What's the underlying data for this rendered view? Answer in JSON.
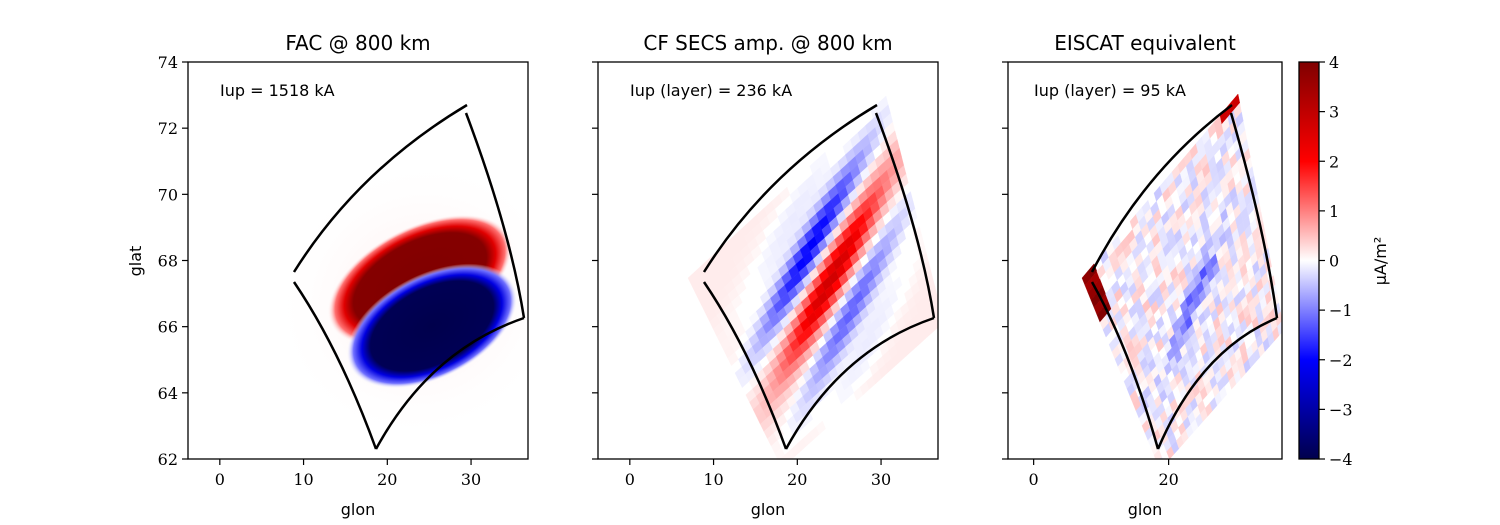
{
  "chart_data": [
    {
      "type": "heatmap",
      "title": "FAC @ 800 km",
      "annotation": "Iup = 1518 kA",
      "xlabel": "glon",
      "ylabel": "glat",
      "xlim": [
        -3.8,
        36.8
      ],
      "ylim": [
        62,
        74
      ],
      "xticks": [
        "0",
        "10",
        "20",
        "30"
      ],
      "yticks": [
        "62",
        "64",
        "66",
        "68",
        "70",
        "72",
        "74"
      ],
      "pattern": "smooth bipolar ellipses: positive lobe north-west, negative lobe south-east",
      "centers": {
        "positive": [
          25.5,
          67.8
        ],
        "negative": [
          27.0,
          66.4
        ]
      }
    },
    {
      "type": "heatmap",
      "title": "CF SECS amp. @ 800 km",
      "annotation": "Iup (layer) = 236 kA",
      "xlabel": "glon",
      "ylabel": "",
      "xlim": [
        -3.8,
        36.8
      ],
      "ylim": [
        62,
        74
      ],
      "xticks": [
        "0",
        "10",
        "20",
        "30"
      ],
      "yticks": [],
      "pattern": "gridded bands: positive centre band flanked by negative bands"
    },
    {
      "type": "heatmap",
      "title": "EISCAT equivalent",
      "annotation": "Iup (layer) = 95 kA",
      "xlabel": "glon",
      "ylabel": "",
      "xlim": [
        -3.8,
        36.8
      ],
      "ylim": [
        62,
        74
      ],
      "xticks": [
        "0",
        "20"
      ],
      "yticks": [],
      "pattern": "noisy gridded estimate with weak structure"
    }
  ],
  "colorbar": {
    "label": "μA/m²",
    "min": -4,
    "max": 4,
    "ticks": [
      "4",
      "3",
      "2",
      "1",
      "0",
      "−1",
      "−2",
      "−3",
      "−4"
    ],
    "colormap": "seismic",
    "colors": [
      "#00004c",
      "#0000ff",
      "#ffffff",
      "#ff0000",
      "#800000"
    ]
  },
  "region_outline": {
    "corners_glon_glat": [
      [
        9.0,
        67.6
      ],
      [
        29.5,
        72.6
      ],
      [
        36.5,
        66.2
      ],
      [
        18.8,
        62.3
      ]
    ]
  }
}
